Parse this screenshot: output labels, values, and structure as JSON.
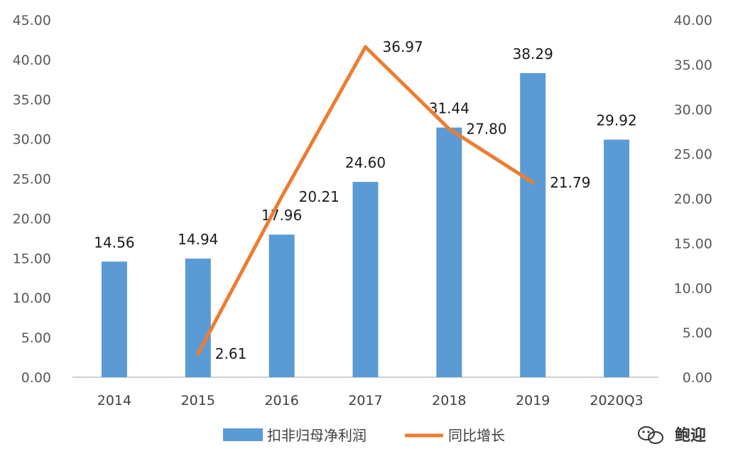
{
  "chart_data": {
    "type": "bar+line",
    "categories": [
      "2014",
      "2015",
      "2016",
      "2017",
      "2018",
      "2019",
      "2020Q3"
    ],
    "series": [
      {
        "name": "扣非归母净利润",
        "type": "bar",
        "axis": "left",
        "color": "#5b9bd5",
        "values": [
          14.56,
          14.94,
          17.96,
          24.6,
          31.44,
          38.29,
          29.92
        ],
        "labels": [
          "14.56",
          "14.94",
          "17.96",
          "24.60",
          "31.44",
          "38.29",
          "29.92"
        ]
      },
      {
        "name": "同比增长",
        "type": "line",
        "axis": "right",
        "color": "#ed7d31",
        "values": [
          null,
          2.61,
          20.21,
          36.97,
          27.8,
          21.79,
          null
        ],
        "labels": [
          "",
          "2.61",
          "20.21",
          "36.97",
          "27.80",
          "21.79",
          ""
        ]
      }
    ],
    "ylim_left": [
      0,
      45
    ],
    "yticks_left": [
      "0.00",
      "5.00",
      "10.00",
      "15.00",
      "20.00",
      "25.00",
      "30.00",
      "35.00",
      "40.00",
      "45.00"
    ],
    "ylim_right": [
      0,
      40
    ],
    "yticks_right": [
      "0.00",
      "5.00",
      "10.00",
      "15.00",
      "20.00",
      "25.00",
      "30.00",
      "35.00",
      "40.00"
    ],
    "grid": false,
    "legend": "bottom-center"
  },
  "watermark": "鲍迎"
}
